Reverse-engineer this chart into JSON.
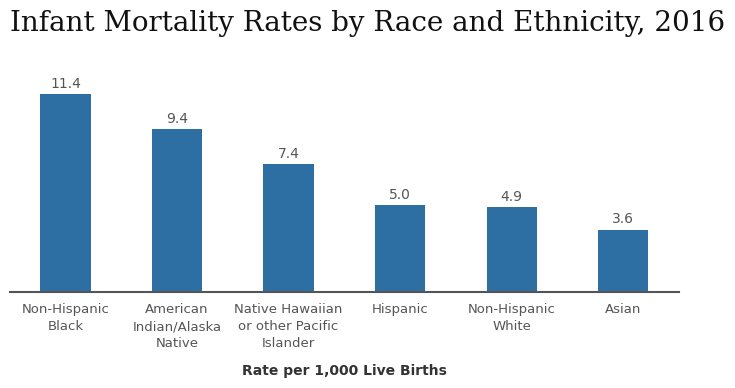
{
  "title": "Infant Mortality Rates by Race and Ethnicity, 2016",
  "categories": [
    "Non-Hispanic\nBlack",
    "American\nIndian/Alaska\nNative",
    "Native Hawaiian\nor other Pacific\nIslander",
    "Hispanic",
    "Non-Hispanic\nWhite",
    "Asian"
  ],
  "values": [
    11.4,
    9.4,
    7.4,
    5.0,
    4.9,
    3.6
  ],
  "bar_color": "#2E6FA3",
  "xlabel": "Rate per 1,000 Live Births",
  "ylim": [
    0,
    13.5
  ],
  "background_color": "#FFFFFF",
  "title_fontsize": 20,
  "label_fontsize": 9.5,
  "value_fontsize": 10,
  "xlabel_fontsize": 10,
  "bar_width": 0.45
}
